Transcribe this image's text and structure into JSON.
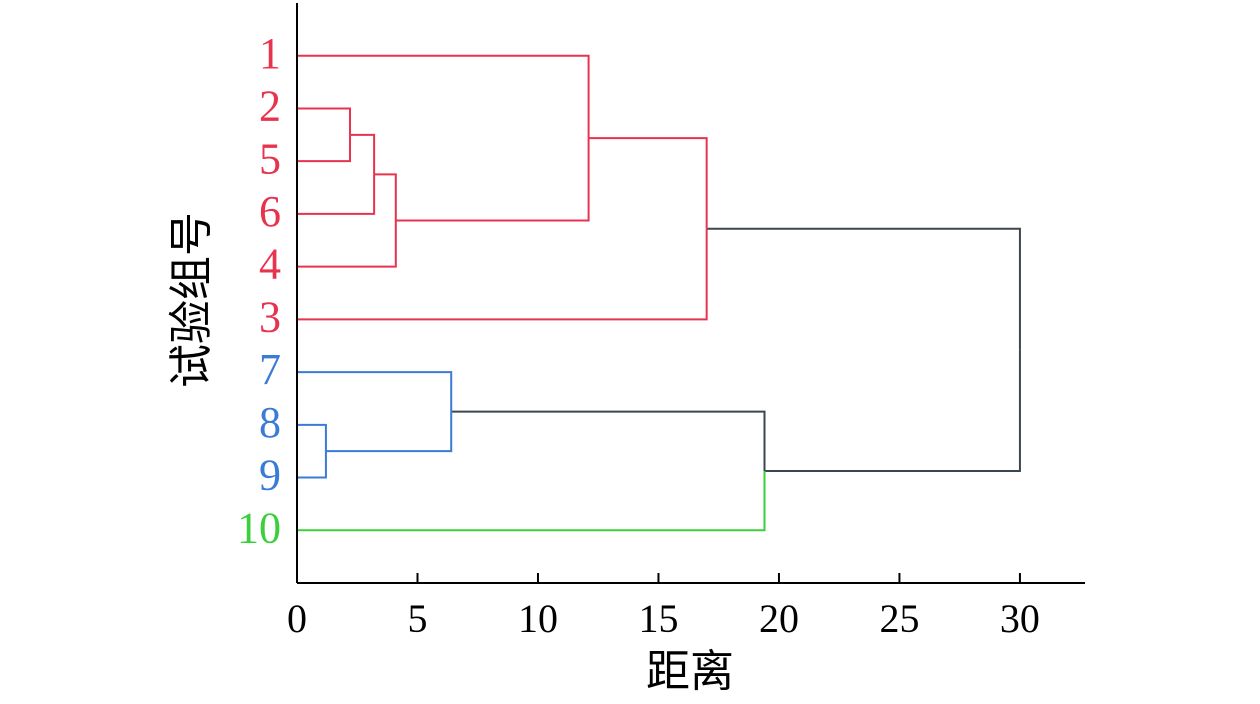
{
  "chart_data": {
    "type": "dendrogram",
    "x_label": "距离",
    "y_label": "试验组号",
    "xlim": [
      0,
      32.7
    ],
    "xticks": [
      0,
      5,
      10,
      15,
      20,
      25,
      30
    ],
    "axis_color": "#000000",
    "tree": {
      "height": 30.0,
      "children": [
        {
          "height": 17.0,
          "color": "#3b4650",
          "children": [
            {
              "height": 12.1,
              "color": "#e8334f",
              "children": [
                {
                  "label": "1",
                  "color": "#e8334f"
                },
                {
                  "height": 4.1,
                  "color": "#e8334f",
                  "children": [
                    {
                      "height": 3.2,
                      "color": "#e8334f",
                      "children": [
                        {
                          "height": 2.2,
                          "color": "#e8334f",
                          "children": [
                            {
                              "label": "2",
                              "color": "#e8334f"
                            },
                            {
                              "label": "5",
                              "color": "#e8334f"
                            }
                          ]
                        },
                        {
                          "label": "6",
                          "color": "#e8334f"
                        }
                      ]
                    },
                    {
                      "label": "4",
                      "color": "#e8334f"
                    }
                  ]
                }
              ]
            },
            {
              "label": "3",
              "color": "#e8334f"
            }
          ]
        },
        {
          "height": 19.4,
          "color": "#3b4650",
          "children": [
            {
              "height": 6.4,
              "color": "#3b4650",
              "children": [
                {
                  "label": "7",
                  "color": "#3a7bd5"
                },
                {
                  "height": 1.2,
                  "color": "#3a7bd5",
                  "children": [
                    {
                      "label": "8",
                      "color": "#3a7bd5"
                    },
                    {
                      "label": "9",
                      "color": "#3a7bd5"
                    }
                  ]
                }
              ]
            },
            {
              "label": "10",
              "color": "#3ccf3c"
            }
          ]
        }
      ]
    }
  }
}
